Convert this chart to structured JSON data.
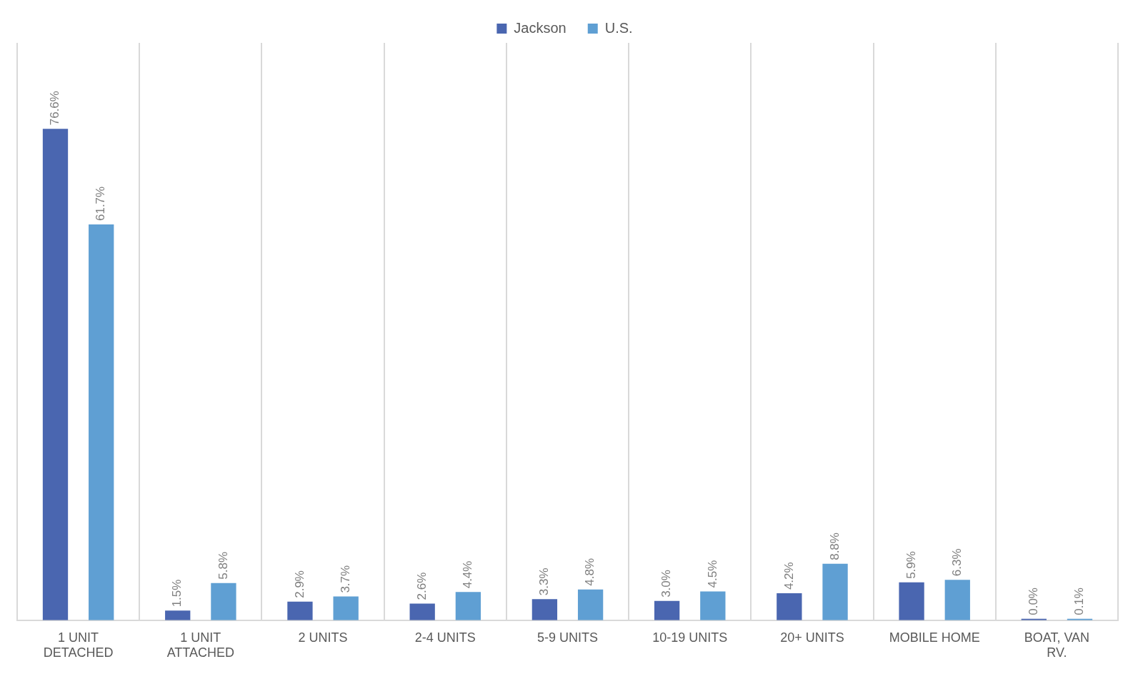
{
  "chart_data": {
    "type": "bar",
    "categories": [
      "1 UNIT DETACHED",
      "1 UNIT ATTACHED",
      "2 UNITS",
      "2-4 UNITS",
      "5-9 UNITS",
      "10-19 UNITS",
      "20+ UNITS",
      "MOBILE HOME",
      "BOAT, VAN RV."
    ],
    "series": [
      {
        "name": "Jackson",
        "color": "#4a66b0",
        "values": [
          76.6,
          1.5,
          2.9,
          2.6,
          3.3,
          3.0,
          4.2,
          5.9,
          0.0
        ],
        "value_labels": [
          "76.6%",
          "1.5%",
          "2.9%",
          "2.6%",
          "3.3%",
          "3.0%",
          "4.2%",
          "5.9%",
          "0.0%"
        ]
      },
      {
        "name": "U.S.",
        "color": "#5f9fd3",
        "values": [
          61.7,
          5.8,
          3.7,
          4.4,
          4.8,
          4.5,
          8.8,
          6.3,
          0.1
        ],
        "value_labels": [
          "61.7%",
          "5.8%",
          "3.7%",
          "4.4%",
          "4.8%",
          "4.5%",
          "8.8%",
          "6.3%",
          "0.1%"
        ]
      }
    ],
    "relative": false,
    "grid": "x",
    "legend": "top"
  }
}
